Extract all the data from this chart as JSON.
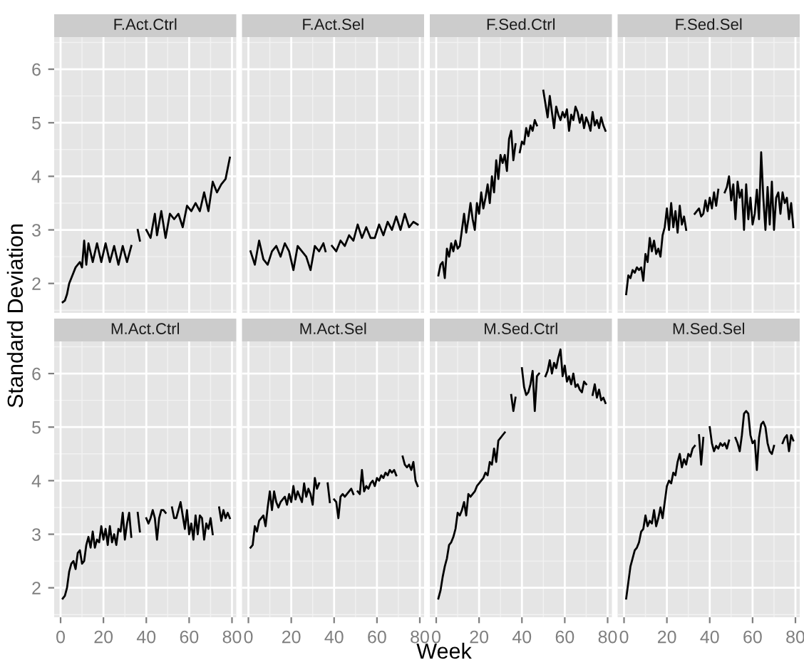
{
  "chart_data": [
    {
      "type": "line",
      "title": "F.Act.Ctrl",
      "ylabel": "Standard Deviation",
      "xlim": [
        -3,
        82
      ],
      "ylim": [
        1.45,
        6.6
      ],
      "xticks": [
        0,
        20,
        40,
        60,
        80
      ],
      "yticks": [
        2,
        3,
        4,
        5,
        6
      ],
      "grid": true,
      "tick_labels": "y",
      "series": [
        {
          "color": "#000000",
          "x": [
            1,
            2,
            3,
            4,
            5,
            7,
            9,
            10,
            11,
            12,
            13,
            15,
            17,
            19,
            21,
            23,
            25,
            27,
            29,
            31,
            33,
            34,
            36,
            37,
            38,
            40,
            42,
            44,
            45,
            47,
            49,
            51,
            53,
            55,
            57,
            59,
            61,
            63,
            65,
            67,
            69,
            71,
            73,
            75,
            77,
            79
          ],
          "values": [
            1.65,
            1.68,
            1.8,
            2.0,
            2.1,
            2.3,
            2.4,
            2.3,
            2.8,
            2.35,
            2.75,
            2.4,
            2.75,
            2.4,
            2.75,
            2.4,
            2.7,
            2.35,
            2.7,
            2.4,
            2.7,
            null,
            3.0,
            2.8,
            null,
            3.0,
            2.85,
            3.3,
            2.9,
            3.35,
            2.85,
            3.3,
            3.2,
            3.3,
            3.05,
            3.45,
            3.35,
            3.5,
            3.35,
            3.7,
            3.35,
            3.9,
            3.7,
            3.85,
            3.95,
            4.35
          ]
        }
      ]
    },
    {
      "type": "line",
      "title": "F.Act.Sel",
      "xlim": [
        -3,
        82
      ],
      "ylim": [
        1.45,
        6.6
      ],
      "xticks": [
        0,
        20,
        40,
        60,
        80
      ],
      "yticks": [
        2,
        3,
        4,
        5,
        6
      ],
      "grid": true,
      "tick_labels": false,
      "series": [
        {
          "color": "#000000",
          "x": [
            1,
            3,
            5,
            7,
            9,
            11,
            13,
            15,
            17,
            19,
            21,
            23,
            25,
            27,
            29,
            31,
            33,
            35,
            36,
            37,
            39,
            41,
            43,
            45,
            47,
            49,
            51,
            53,
            55,
            57,
            59,
            61,
            63,
            65,
            67,
            69,
            71,
            73,
            75,
            77,
            79
          ],
          "values": [
            2.6,
            2.35,
            2.8,
            2.45,
            2.35,
            2.6,
            2.7,
            2.5,
            2.75,
            2.6,
            2.25,
            2.7,
            2.6,
            2.5,
            2.25,
            2.7,
            2.6,
            2.75,
            2.6,
            null,
            2.7,
            2.6,
            2.8,
            2.7,
            2.9,
            2.8,
            3.1,
            2.85,
            3.05,
            2.85,
            2.85,
            3.1,
            2.9,
            3.15,
            3.0,
            3.25,
            3.0,
            3.3,
            3.05,
            3.15,
            3.1
          ]
        }
      ]
    },
    {
      "type": "line",
      "title": "F.Sed.Ctrl",
      "xlim": [
        -3,
        82
      ],
      "ylim": [
        1.45,
        6.6
      ],
      "xticks": [
        0,
        20,
        40,
        60,
        80
      ],
      "yticks": [
        2,
        3,
        4,
        5,
        6
      ],
      "grid": true,
      "tick_labels": false,
      "series": [
        {
          "color": "#000000",
          "x": [
            1,
            2,
            3,
            4,
            5,
            6,
            7,
            8,
            9,
            10,
            11,
            12,
            13,
            14,
            15,
            16,
            17,
            18,
            19,
            20,
            21,
            22,
            23,
            24,
            25,
            26,
            27,
            28,
            29,
            30,
            31,
            32,
            33,
            34,
            35,
            36,
            37,
            38,
            39,
            40,
            41,
            42,
            43,
            44,
            45,
            46,
            47,
            48,
            50,
            51,
            52,
            53,
            54,
            55,
            56,
            57,
            58,
            59,
            60,
            61,
            62,
            63,
            64,
            65,
            66,
            67,
            68,
            69,
            70,
            71,
            72,
            73,
            74,
            75,
            76,
            77,
            78,
            79
          ],
          "values": [
            2.15,
            2.35,
            2.4,
            2.1,
            2.65,
            2.5,
            2.75,
            2.6,
            2.8,
            2.65,
            2.7,
            3.0,
            3.3,
            2.95,
            3.2,
            3.5,
            3.2,
            3.0,
            3.5,
            3.3,
            3.7,
            3.4,
            3.6,
            3.85,
            3.5,
            4.0,
            3.7,
            4.3,
            3.95,
            4.4,
            4.25,
            4.4,
            4.1,
            4.7,
            4.85,
            4.3,
            4.6,
            null,
            4.45,
            4.65,
            4.6,
            4.9,
            4.75,
            4.95,
            4.85,
            5.05,
            4.95,
            null,
            5.6,
            5.35,
            5.1,
            5.5,
            5.2,
            4.9,
            5.3,
            5.15,
            5.05,
            5.2,
            5.1,
            5.25,
            4.85,
            5.15,
            5.05,
            5.3,
            5.2,
            5.0,
            5.15,
            4.9,
            5.1,
            5.0,
            4.85,
            5.2,
            4.95,
            5.05,
            4.9,
            5.1,
            4.95,
            4.85
          ]
        }
      ]
    },
    {
      "type": "line",
      "title": "F.Sed.Sel",
      "xlim": [
        -3,
        82
      ],
      "ylim": [
        1.45,
        6.6
      ],
      "xticks": [
        0,
        20,
        40,
        60,
        80
      ],
      "yticks": [
        2,
        3,
        4,
        5,
        6
      ],
      "grid": true,
      "tick_labels": false,
      "series": [
        {
          "color": "#000000",
          "x": [
            1,
            2,
            3,
            4,
            5,
            6,
            7,
            8,
            9,
            10,
            11,
            12,
            13,
            14,
            15,
            16,
            17,
            18,
            19,
            20,
            21,
            22,
            23,
            24,
            25,
            26,
            27,
            28,
            29,
            30,
            33,
            34,
            35,
            36,
            37,
            38,
            39,
            40,
            41,
            42,
            43,
            44,
            45,
            47,
            48,
            49,
            50,
            51,
            52,
            53,
            54,
            55,
            56,
            57,
            58,
            59,
            60,
            61,
            62,
            63,
            64,
            65,
            66,
            67,
            68,
            69,
            70,
            71,
            72,
            73,
            74,
            75,
            76,
            77,
            78,
            79
          ],
          "values": [
            1.8,
            2.15,
            2.1,
            2.25,
            2.2,
            2.3,
            2.25,
            2.3,
            2.05,
            2.55,
            2.4,
            2.85,
            2.6,
            2.8,
            2.55,
            2.65,
            2.5,
            2.9,
            3.05,
            3.4,
            3.0,
            3.5,
            3.05,
            3.35,
            2.95,
            3.45,
            3.1,
            3.25,
            3.0,
            null,
            3.3,
            3.35,
            3.4,
            3.25,
            3.3,
            3.55,
            3.35,
            3.6,
            3.4,
            3.7,
            3.45,
            3.75,
            null,
            3.7,
            3.8,
            4.0,
            3.55,
            3.85,
            3.2,
            3.9,
            3.6,
            3.75,
            3.0,
            3.85,
            3.2,
            3.6,
            3.1,
            3.3,
            3.75,
            3.2,
            4.45,
            3.6,
            3.0,
            3.8,
            3.1,
            3.9,
            3.0,
            3.6,
            3.7,
            3.3,
            3.7,
            3.5,
            3.6,
            3.2,
            3.5,
            3.05
          ]
        }
      ]
    },
    {
      "type": "line",
      "title": "M.Act.Ctrl",
      "xlim": [
        -3,
        82
      ],
      "ylim": [
        1.45,
        6.6
      ],
      "xticks": [
        0,
        20,
        40,
        60,
        80
      ],
      "yticks": [
        2,
        3,
        4,
        5,
        6
      ],
      "grid": true,
      "series": [
        {
          "color": "#000000",
          "x": [
            1,
            2,
            3,
            4,
            5,
            6,
            7,
            8,
            9,
            10,
            11,
            12,
            13,
            14,
            15,
            16,
            17,
            18,
            19,
            20,
            21,
            22,
            23,
            24,
            25,
            26,
            27,
            28,
            29,
            30,
            31,
            32,
            33,
            34,
            36,
            37,
            38,
            40,
            41,
            42,
            43,
            44,
            45,
            46,
            47,
            48,
            49,
            50,
            52,
            53,
            54,
            55,
            56,
            57,
            58,
            59,
            60,
            61,
            62,
            63,
            64,
            65,
            66,
            67,
            68,
            69,
            70,
            71,
            72,
            74,
            75,
            76,
            77,
            78,
            79
          ],
          "values": [
            1.8,
            1.85,
            2.0,
            2.3,
            2.45,
            2.5,
            2.35,
            2.65,
            2.7,
            2.45,
            2.5,
            2.8,
            2.95,
            2.75,
            3.05,
            2.75,
            2.9,
            2.85,
            3.15,
            2.9,
            3.1,
            2.8,
            3.15,
            2.85,
            3.0,
            2.8,
            3.1,
            3.05,
            3.4,
            2.9,
            3.2,
            3.4,
            2.95,
            null,
            3.4,
            3.05,
            null,
            3.3,
            3.2,
            3.3,
            3.45,
            3.3,
            2.9,
            3.3,
            3.45,
            3.45,
            3.4,
            null,
            3.5,
            3.3,
            3.3,
            3.45,
            3.6,
            3.35,
            3.1,
            3.45,
            3.0,
            3.2,
            2.9,
            3.35,
            3.0,
            3.35,
            3.3,
            2.9,
            3.2,
            3.1,
            3.3,
            3.0,
            null,
            3.5,
            3.25,
            3.45,
            3.3,
            3.4,
            3.3
          ]
        }
      ]
    },
    {
      "type": "line",
      "title": "M.Act.Sel",
      "xlim": [
        -3,
        82
      ],
      "ylim": [
        1.45,
        6.6
      ],
      "xticks": [
        0,
        20,
        40,
        60,
        80
      ],
      "yticks": [
        2,
        3,
        4,
        5,
        6
      ],
      "grid": true,
      "tick_labels": "x",
      "series": [
        {
          "color": "#000000",
          "x": [
            1,
            2,
            3,
            4,
            5,
            6,
            7,
            8,
            9,
            10,
            11,
            12,
            13,
            14,
            15,
            16,
            17,
            18,
            19,
            20,
            21,
            22,
            23,
            24,
            25,
            26,
            27,
            28,
            29,
            30,
            31,
            32,
            33,
            34,
            37,
            38,
            39,
            40,
            41,
            42,
            43,
            44,
            45,
            46,
            47,
            48,
            49,
            50,
            51,
            52,
            53,
            54,
            55,
            56,
            57,
            58,
            59,
            60,
            61,
            62,
            63,
            64,
            65,
            66,
            67,
            68,
            69,
            70,
            72,
            73,
            74,
            75,
            76,
            77,
            78,
            79
          ],
          "values": [
            2.75,
            2.8,
            3.15,
            3.05,
            3.25,
            3.3,
            3.35,
            3.15,
            3.5,
            3.8,
            3.45,
            3.8,
            3.6,
            3.5,
            3.6,
            3.65,
            3.7,
            3.55,
            3.75,
            3.6,
            3.9,
            3.65,
            3.8,
            3.7,
            3.6,
            3.95,
            3.7,
            3.85,
            3.75,
            3.55,
            4.05,
            3.85,
            3.95,
            null,
            3.95,
            3.6,
            null,
            3.65,
            3.6,
            3.3,
            3.7,
            3.75,
            3.7,
            3.75,
            3.8,
            3.85,
            3.75,
            null,
            3.8,
            3.75,
            4.2,
            3.8,
            3.9,
            3.85,
            3.95,
            4.0,
            3.9,
            4.05,
            4.0,
            4.1,
            4.05,
            4.15,
            4.1,
            4.2,
            4.15,
            4.2,
            4.1,
            null,
            4.45,
            4.3,
            4.25,
            4.3,
            4.2,
            4.35,
            4.0,
            3.9
          ]
        }
      ]
    },
    {
      "type": "line",
      "title": "M.Sed.Ctrl",
      "xlabel": "Week",
      "xlim": [
        -3,
        82
      ],
      "ylim": [
        1.45,
        6.6
      ],
      "xticks": [
        0,
        20,
        40,
        60,
        80
      ],
      "yticks": [
        2,
        3,
        4,
        5,
        6
      ],
      "grid": true,
      "tick_labels": "x",
      "series": [
        {
          "color": "#000000",
          "x": [
            1,
            2,
            3,
            4,
            5,
            6,
            7,
            8,
            9,
            10,
            11,
            12,
            13,
            14,
            15,
            16,
            17,
            18,
            19,
            20,
            21,
            22,
            23,
            24,
            25,
            26,
            27,
            28,
            29,
            30,
            31,
            32,
            33,
            35,
            36,
            37,
            38,
            40,
            41,
            42,
            43,
            44,
            45,
            46,
            47,
            48,
            49,
            51,
            52,
            53,
            54,
            55,
            56,
            57,
            58,
            59,
            60,
            61,
            62,
            63,
            64,
            65,
            66,
            67,
            68,
            69,
            70,
            71,
            73,
            74,
            75,
            76,
            77,
            78,
            79
          ],
          "values": [
            1.8,
            1.95,
            2.2,
            2.4,
            2.55,
            2.8,
            2.85,
            2.95,
            3.1,
            3.4,
            3.35,
            3.45,
            3.6,
            3.35,
            3.75,
            3.7,
            3.75,
            3.8,
            3.9,
            3.95,
            4.0,
            4.05,
            4.15,
            4.1,
            4.35,
            4.3,
            4.6,
            4.35,
            4.75,
            4.8,
            4.85,
            4.9,
            null,
            5.6,
            5.3,
            5.55,
            null,
            6.1,
            5.75,
            5.6,
            5.65,
            5.8,
            6.05,
            5.3,
            5.95,
            6.0,
            null,
            5.95,
            6.05,
            6.25,
            6.0,
            6.2,
            6.1,
            6.3,
            6.45,
            5.95,
            6.15,
            5.85,
            5.95,
            5.8,
            6.0,
            5.75,
            5.8,
            5.7,
            5.65,
            5.85,
            5.8,
            null,
            5.6,
            5.8,
            5.55,
            5.7,
            5.5,
            5.55,
            5.45
          ]
        }
      ]
    },
    {
      "type": "line",
      "title": "M.Sed.Sel",
      "xlim": [
        -3,
        82
      ],
      "ylim": [
        1.45,
        6.6
      ],
      "xticks": [
        0,
        20,
        40,
        60,
        80
      ],
      "yticks": [
        2,
        3,
        4,
        5,
        6
      ],
      "grid": true,
      "tick_labels": "x",
      "series": [
        {
          "color": "#000000",
          "x": [
            1,
            2,
            3,
            4,
            5,
            6,
            7,
            8,
            9,
            10,
            11,
            12,
            13,
            14,
            15,
            16,
            17,
            18,
            19,
            20,
            21,
            22,
            23,
            24,
            25,
            26,
            27,
            28,
            29,
            30,
            31,
            32,
            33,
            34,
            35,
            36,
            37,
            38,
            40,
            41,
            42,
            43,
            44,
            45,
            46,
            47,
            48,
            49,
            50,
            52,
            53,
            54,
            55,
            56,
            57,
            58,
            59,
            60,
            61,
            62,
            63,
            64,
            65,
            66,
            67,
            68,
            69,
            70,
            71,
            74,
            75,
            76,
            77,
            78,
            79
          ],
          "values": [
            1.8,
            2.1,
            2.4,
            2.55,
            2.7,
            2.75,
            2.85,
            3.05,
            3.1,
            3.35,
            3.15,
            3.25,
            3.2,
            3.45,
            3.15,
            3.3,
            3.5,
            3.3,
            3.6,
            3.9,
            4.0,
            3.95,
            4.15,
            4.1,
            4.35,
            4.5,
            4.25,
            4.4,
            4.3,
            4.5,
            4.45,
            4.6,
            4.65,
            null,
            4.85,
            4.3,
            4.8,
            null,
            5.0,
            4.7,
            4.55,
            4.65,
            4.6,
            4.7,
            4.65,
            4.7,
            4.6,
            4.75,
            null,
            4.8,
            4.7,
            4.55,
            4.85,
            5.25,
            5.3,
            5.25,
            4.85,
            4.7,
            4.75,
            4.2,
            4.8,
            5.05,
            5.1,
            5.0,
            4.7,
            4.55,
            4.5,
            4.65,
            null,
            4.7,
            4.8,
            4.85,
            4.55,
            4.85,
            4.75
          ]
        }
      ]
    }
  ]
}
